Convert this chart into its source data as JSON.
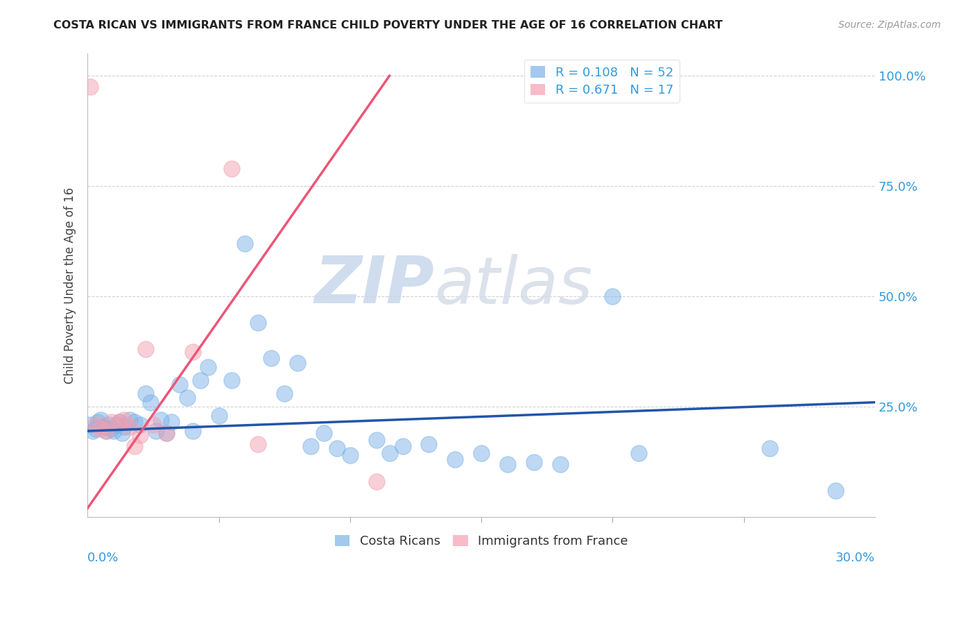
{
  "title": "COSTA RICAN VS IMMIGRANTS FROM FRANCE CHILD POVERTY UNDER THE AGE OF 16 CORRELATION CHART",
  "source": "Source: ZipAtlas.com",
  "ylabel": "Child Poverty Under the Age of 16",
  "ytick_labels": [
    "100.0%",
    "75.0%",
    "50.0%",
    "25.0%"
  ],
  "ytick_values": [
    1.0,
    0.75,
    0.5,
    0.25
  ],
  "xmin": 0.0,
  "xmax": 0.3,
  "ymin": 0.0,
  "ymax": 1.05,
  "legend_r1": "R = 0.108",
  "legend_n1": "N = 52",
  "legend_r2": "R = 0.671",
  "legend_n2": "N = 17",
  "color_blue": "#7EB3E8",
  "color_pink": "#F4A0B0",
  "color_blue_line": "#2255AA",
  "color_pink_line": "#EE5577",
  "watermark_zip": "ZIP",
  "watermark_atlas": "atlas",
  "blue_scatter_x": [
    0.001,
    0.002,
    0.003,
    0.004,
    0.005,
    0.006,
    0.007,
    0.008,
    0.009,
    0.01,
    0.011,
    0.012,
    0.013,
    0.014,
    0.016,
    0.018,
    0.02,
    0.022,
    0.024,
    0.026,
    0.028,
    0.03,
    0.032,
    0.035,
    0.038,
    0.04,
    0.043,
    0.046,
    0.05,
    0.055,
    0.06,
    0.065,
    0.07,
    0.075,
    0.08,
    0.085,
    0.09,
    0.095,
    0.1,
    0.11,
    0.115,
    0.12,
    0.13,
    0.14,
    0.15,
    0.16,
    0.17,
    0.18,
    0.2,
    0.21,
    0.26,
    0.285
  ],
  "blue_scatter_y": [
    0.21,
    0.195,
    0.2,
    0.215,
    0.22,
    0.205,
    0.195,
    0.21,
    0.2,
    0.195,
    0.21,
    0.215,
    0.19,
    0.205,
    0.22,
    0.215,
    0.21,
    0.28,
    0.26,
    0.195,
    0.22,
    0.19,
    0.215,
    0.3,
    0.27,
    0.195,
    0.31,
    0.34,
    0.23,
    0.31,
    0.62,
    0.44,
    0.36,
    0.28,
    0.35,
    0.16,
    0.19,
    0.155,
    0.14,
    0.175,
    0.145,
    0.16,
    0.165,
    0.13,
    0.145,
    0.12,
    0.125,
    0.12,
    0.5,
    0.145,
    0.155,
    0.06
  ],
  "pink_scatter_x": [
    0.001,
    0.003,
    0.005,
    0.007,
    0.009,
    0.012,
    0.014,
    0.016,
    0.018,
    0.02,
    0.022,
    0.025,
    0.03,
    0.04,
    0.055,
    0.065,
    0.11
  ],
  "pink_scatter_y": [
    0.975,
    0.21,
    0.2,
    0.195,
    0.215,
    0.215,
    0.22,
    0.205,
    0.16,
    0.185,
    0.38,
    0.21,
    0.19,
    0.375,
    0.79,
    0.165,
    0.08
  ],
  "blue_line_x": [
    0.0,
    0.3
  ],
  "blue_line_y": [
    0.195,
    0.26
  ],
  "pink_line_x": [
    0.0,
    0.115
  ],
  "pink_line_y": [
    0.02,
    1.0
  ]
}
